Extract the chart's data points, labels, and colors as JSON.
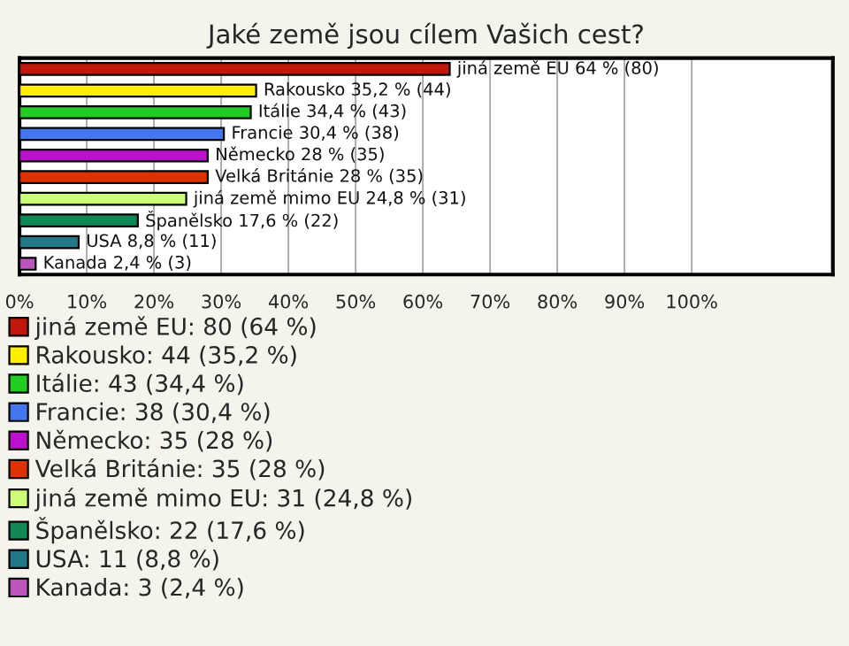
{
  "chart_data": {
    "type": "bar",
    "orientation": "horizontal",
    "title": "Jaké země jsou cílem Vašich cest?",
    "categories": [
      null,
      null,
      null,
      null,
      null,
      null,
      null,
      null,
      null,
      null
    ],
    "series": [
      {
        "name": "jiná země EU: 80 (64 %)",
        "color": "#c0180c",
        "values": [
          64,
          null,
          null,
          null,
          null,
          null,
          null,
          null,
          null,
          null
        ],
        "value_labels": [
          "jiná země EU 64 % (80)",
          null,
          null,
          null,
          null,
          null,
          null,
          null,
          null,
          null
        ]
      },
      {
        "name": "Rakousko: 44 (35,2 %)",
        "color": "#ffee00",
        "values": [
          null,
          35.2,
          null,
          null,
          null,
          null,
          null,
          null,
          null,
          null
        ],
        "value_labels": [
          null,
          "Rakousko 35,2 % (44)",
          null,
          null,
          null,
          null,
          null,
          null,
          null,
          null
        ]
      },
      {
        "name": "Itálie: 43 (34,4 %)",
        "color": "#22cc22",
        "values": [
          null,
          null,
          34.4,
          null,
          null,
          null,
          null,
          null,
          null,
          null
        ],
        "value_labels": [
          null,
          null,
          "Itálie 34,4 % (43)",
          null,
          null,
          null,
          null,
          null,
          null,
          null
        ]
      },
      {
        "name": "Francie: 38 (30,4 %)",
        "color": "#4477ee",
        "values": [
          null,
          null,
          null,
          30.4,
          null,
          null,
          null,
          null,
          null,
          null
        ],
        "value_labels": [
          null,
          null,
          null,
          "Francie 30,4 % (38)",
          null,
          null,
          null,
          null,
          null,
          null
        ]
      },
      {
        "name": "Německo: 35 (28 %)",
        "color": "#bb11cc",
        "values": [
          null,
          null,
          null,
          null,
          28,
          null,
          null,
          null,
          null,
          null
        ],
        "value_labels": [
          null,
          null,
          null,
          null,
          "Německo 28 % (35)",
          null,
          null,
          null,
          null,
          null
        ]
      },
      {
        "name": "Velká Británie: 35 (28 %)",
        "color": "#dd3300",
        "values": [
          null,
          null,
          null,
          null,
          null,
          28,
          null,
          null,
          null,
          null
        ],
        "value_labels": [
          null,
          null,
          null,
          null,
          null,
          "Velká Británie 28 % (35)",
          null,
          null,
          null,
          null
        ]
      },
      {
        "name": "jiná země mimo EU: 31 (24,8 %)",
        "color": "#ccff77",
        "values": [
          null,
          null,
          null,
          null,
          null,
          null,
          24.8,
          null,
          null,
          null
        ],
        "value_labels": [
          null,
          null,
          null,
          null,
          null,
          null,
          "jiná země mimo EU 24,8 % (31)",
          null,
          null,
          null
        ]
      },
      {
        "name": "Španělsko: 22 (17,6 %)",
        "color": "#118855",
        "values": [
          null,
          null,
          null,
          null,
          null,
          null,
          null,
          17.6,
          null,
          null
        ],
        "value_labels": [
          null,
          null,
          null,
          null,
          null,
          null,
          null,
          "Španělsko 17,6 % (22)",
          null,
          null
        ]
      },
      {
        "name": "USA: 11 (8,8 %)",
        "color": "#227788",
        "values": [
          null,
          null,
          null,
          null,
          null,
          null,
          null,
          null,
          8.8,
          null
        ],
        "value_labels": [
          null,
          null,
          null,
          null,
          null,
          null,
          null,
          null,
          "USA 8,8 % (11)",
          null
        ]
      },
      {
        "name": "Kanada: 3 (2,4 %)",
        "color": "#bb55bb",
        "values": [
          null,
          null,
          null,
          null,
          null,
          null,
          null,
          null,
          null,
          2.4
        ],
        "value_labels": [
          null,
          null,
          null,
          null,
          null,
          null,
          null,
          null,
          null,
          "Kanada 2,4 % (3)"
        ]
      }
    ],
    "xlim": [
      0,
      121
    ],
    "xticks": [
      {
        "value": 0,
        "label": "0%"
      },
      {
        "value": 10,
        "label": "10%"
      },
      {
        "value": 20,
        "label": "20%"
      },
      {
        "value": 30,
        "label": "30%"
      },
      {
        "value": 40,
        "label": "40%"
      },
      {
        "value": 50,
        "label": "50%"
      },
      {
        "value": 60,
        "label": "60%"
      },
      {
        "value": 70,
        "label": "70%"
      },
      {
        "value": 80,
        "label": "80%"
      },
      {
        "value": 90,
        "label": "90%"
      },
      {
        "value": 100,
        "label": "100%"
      }
    ],
    "grid": "x",
    "legend": "bottom",
    "tick_labels": "x"
  }
}
